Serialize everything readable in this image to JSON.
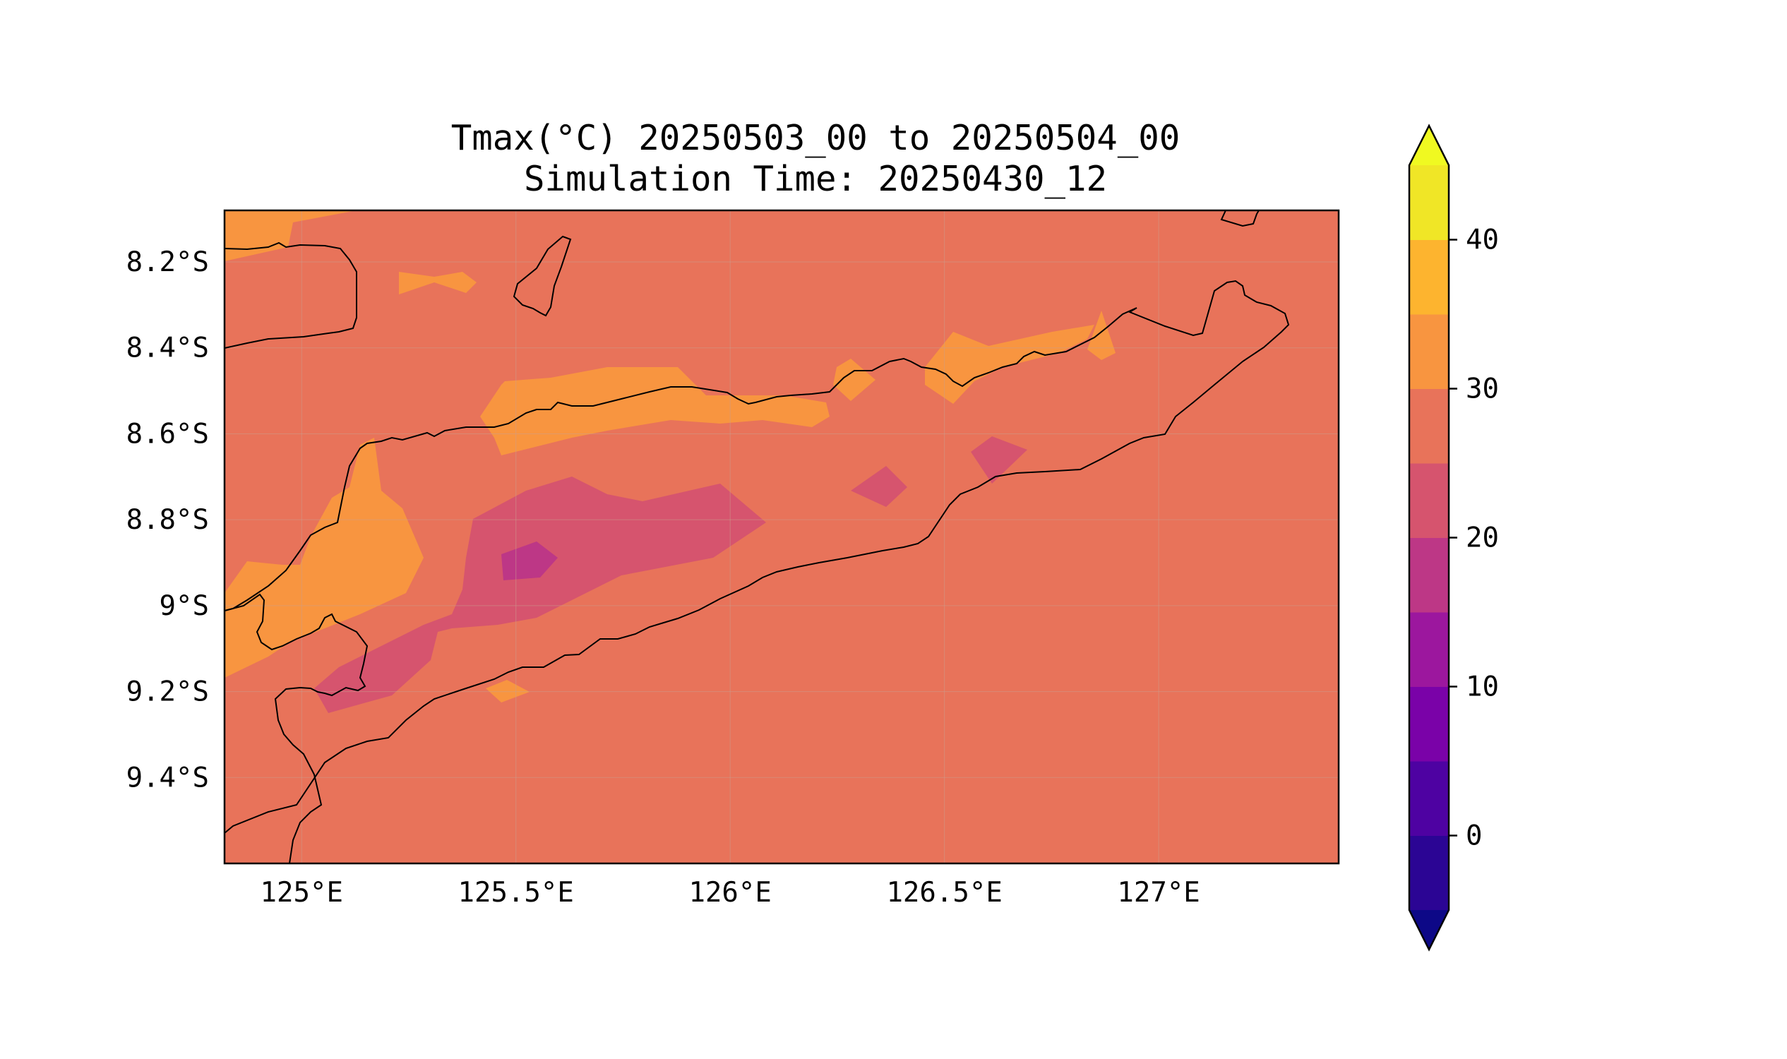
{
  "title": {
    "line1": "Tmax(°C) 20250503_00 to 20250504_00",
    "line2": "Simulation Time: 20250430_12"
  },
  "map": {
    "extent_lon": [
      124.82,
      127.42
    ],
    "extent_lat": [
      -9.6,
      -8.08
    ],
    "lat_ticks": [
      {
        "value": -8.2,
        "label": "8.2°S"
      },
      {
        "value": -8.4,
        "label": "8.4°S"
      },
      {
        "value": -8.6,
        "label": "8.6°S"
      },
      {
        "value": -8.8,
        "label": "8.8°S"
      },
      {
        "value": -9.0,
        "label": "9°S"
      },
      {
        "value": -9.2,
        "label": "9.2°S"
      },
      {
        "value": -9.4,
        "label": "9.4°S"
      }
    ],
    "lon_ticks": [
      {
        "value": 125.0,
        "label": "125°E"
      },
      {
        "value": 125.5,
        "label": "125.5°E"
      },
      {
        "value": 126.0,
        "label": "126°E"
      },
      {
        "value": 126.5,
        "label": "126.5°E"
      },
      {
        "value": 127.0,
        "label": "127°E"
      }
    ],
    "gridlines": true,
    "background_band_color": "#e8735a"
  },
  "colorbar": {
    "min": -5,
    "max": 45,
    "extend": "both",
    "levels": [
      {
        "from": -5,
        "to": 0,
        "color": "#2b0594"
      },
      {
        "from": 0,
        "to": 5,
        "color": "#4e02a2"
      },
      {
        "from": 5,
        "to": 10,
        "color": "#7a02a8"
      },
      {
        "from": 10,
        "to": 15,
        "color": "#9c179e"
      },
      {
        "from": 15,
        "to": 20,
        "color": "#bd3786"
      },
      {
        "from": 20,
        "to": 25,
        "color": "#d6546e"
      },
      {
        "from": 25,
        "to": 30,
        "color": "#e8735a"
      },
      {
        "from": 30,
        "to": 35,
        "color": "#f89540"
      },
      {
        "from": 35,
        "to": 40,
        "color": "#fdb42f"
      },
      {
        "from": 40,
        "to": 45,
        "color": "#f0e626"
      }
    ],
    "under_color": "#0d0887",
    "over_color": "#f0f921",
    "ticks": [
      {
        "value": 0,
        "label": "0"
      },
      {
        "value": 10,
        "label": "10"
      },
      {
        "value": 20,
        "label": "20"
      },
      {
        "value": 30,
        "label": "30"
      },
      {
        "value": 40,
        "label": "40"
      }
    ]
  }
}
